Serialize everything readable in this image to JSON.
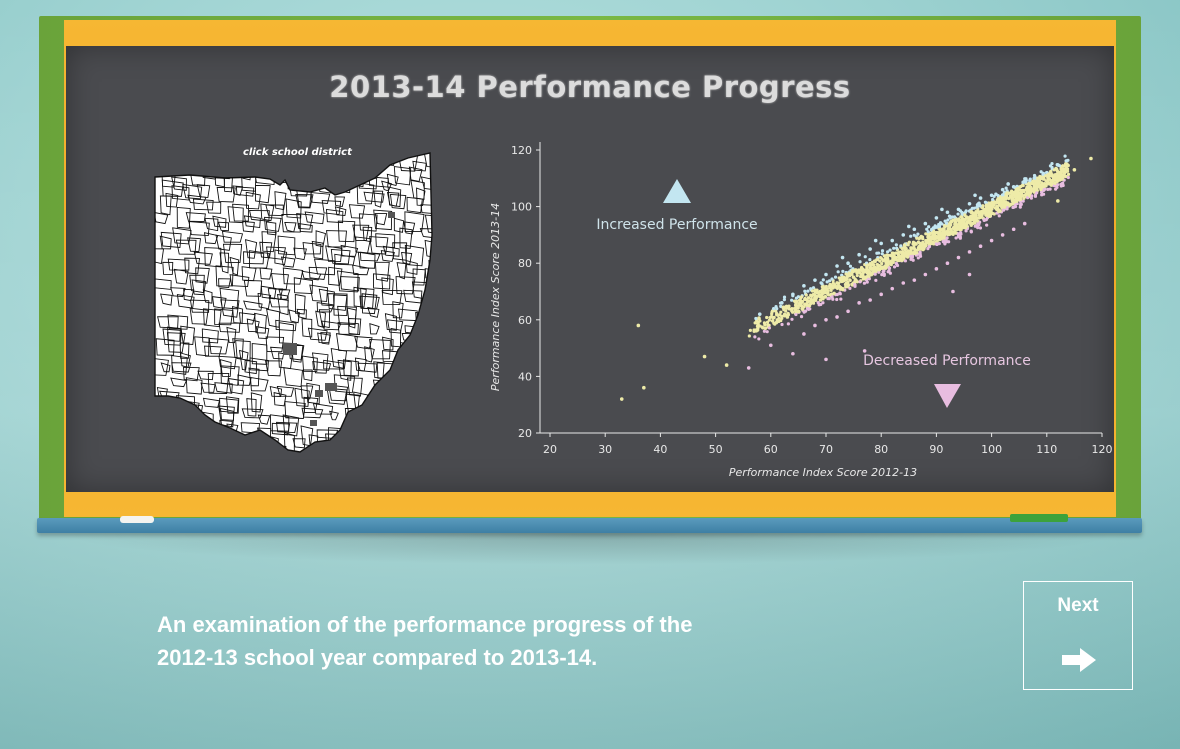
{
  "board": {
    "title": "2013-14  Performance Progress",
    "map_hint": "click school district"
  },
  "caption": {
    "line1": "An examination of the performance progress of the",
    "line2": "2012-13 school year compared to 2013-14."
  },
  "next_button": {
    "label": "Next",
    "icon": "arrow-right-icon"
  },
  "colors": {
    "increased": "#c3e6f1",
    "decreased": "#e8bde0",
    "same": "#eeeba8",
    "chalk": "#e8e8e8"
  },
  "chart_data": {
    "type": "scatter",
    "xlabel": "Performance Index Score 2012-13",
    "ylabel": "Performance Index Score 2013-14",
    "xlim": [
      20,
      120
    ],
    "ylim": [
      20,
      120
    ],
    "xticks": [
      20,
      30,
      40,
      50,
      60,
      70,
      80,
      90,
      100,
      110,
      120
    ],
    "yticks": [
      20,
      40,
      60,
      80,
      100,
      120
    ],
    "annotations": {
      "increased": "Increased Performance",
      "decreased": "Decreased Performance"
    },
    "series": [
      {
        "key": "increased",
        "values": [
          [
            58,
            62
          ],
          [
            62,
            66
          ],
          [
            64,
            69
          ],
          [
            66,
            72
          ],
          [
            68,
            74
          ],
          [
            70,
            76
          ],
          [
            72,
            79
          ],
          [
            74,
            80
          ],
          [
            76,
            83
          ],
          [
            78,
            85
          ],
          [
            80,
            87
          ],
          [
            82,
            88
          ],
          [
            84,
            90
          ],
          [
            86,
            92
          ],
          [
            88,
            94
          ],
          [
            90,
            96
          ],
          [
            92,
            98
          ],
          [
            94,
            99
          ],
          [
            96,
            101
          ],
          [
            98,
            103
          ],
          [
            100,
            104
          ],
          [
            102,
            106
          ],
          [
            104,
            107
          ],
          [
            106,
            109
          ],
          [
            108,
            110
          ],
          [
            110,
            112
          ],
          [
            73,
            82
          ],
          [
            79,
            88
          ],
          [
            85,
            93
          ],
          [
            91,
            99
          ],
          [
            97,
            104
          ],
          [
            103,
            108
          ]
        ]
      },
      {
        "key": "same",
        "values": [
          [
            33,
            32
          ],
          [
            37,
            36
          ],
          [
            36,
            58
          ],
          [
            48,
            47
          ],
          [
            52,
            44
          ],
          [
            57,
            56
          ],
          [
            59,
            57
          ],
          [
            61,
            59
          ],
          [
            63,
            61
          ],
          [
            65,
            63
          ],
          [
            67,
            65
          ],
          [
            69,
            67
          ],
          [
            71,
            69
          ],
          [
            73,
            71
          ],
          [
            75,
            73
          ],
          [
            77,
            75
          ],
          [
            79,
            77
          ],
          [
            81,
            79
          ],
          [
            83,
            81
          ],
          [
            85,
            83
          ],
          [
            87,
            85
          ],
          [
            89,
            87
          ],
          [
            91,
            89
          ],
          [
            93,
            91
          ],
          [
            95,
            93
          ],
          [
            97,
            95
          ],
          [
            99,
            97
          ],
          [
            101,
            99
          ],
          [
            103,
            101
          ],
          [
            105,
            103
          ],
          [
            107,
            105
          ],
          [
            109,
            107
          ],
          [
            111,
            109
          ],
          [
            113,
            111
          ],
          [
            115,
            113
          ],
          [
            118,
            117
          ],
          [
            112,
            102
          ]
        ]
      },
      {
        "key": "decreased",
        "values": [
          [
            56,
            43
          ],
          [
            60,
            51
          ],
          [
            64,
            48
          ],
          [
            66,
            55
          ],
          [
            68,
            58
          ],
          [
            70,
            60
          ],
          [
            72,
            61
          ],
          [
            74,
            63
          ],
          [
            76,
            66
          ],
          [
            78,
            67
          ],
          [
            80,
            69
          ],
          [
            82,
            71
          ],
          [
            84,
            73
          ],
          [
            86,
            74
          ],
          [
            88,
            76
          ],
          [
            90,
            78
          ],
          [
            92,
            80
          ],
          [
            94,
            82
          ],
          [
            96,
            84
          ],
          [
            98,
            86
          ],
          [
            100,
            88
          ],
          [
            102,
            90
          ],
          [
            104,
            92
          ],
          [
            106,
            94
          ],
          [
            93,
            70
          ],
          [
            96,
            76
          ],
          [
            77,
            49
          ],
          [
            70,
            46
          ]
        ]
      }
    ]
  }
}
